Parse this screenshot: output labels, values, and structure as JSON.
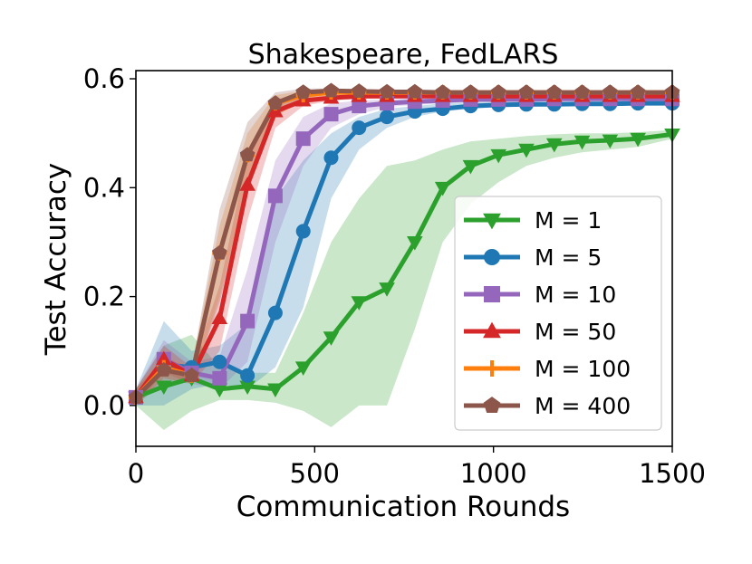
{
  "chart_data": {
    "type": "line",
    "title": "Shakespeare, FedLARS",
    "xlabel": "Communication Rounds",
    "ylabel": "Test Accuracy",
    "xlim": [
      0,
      1500
    ],
    "ylim": [
      -0.075,
      0.615
    ],
    "xticks": [
      0,
      500,
      1000,
      1500
    ],
    "xtick_labels": [
      "0",
      "500",
      "1000",
      "1500"
    ],
    "yticks": [
      0.0,
      0.2,
      0.4,
      0.6
    ],
    "ytick_labels": [
      "0.0",
      "0.2",
      "0.4",
      "0.6"
    ],
    "grid": false,
    "legend_position": "lower-right",
    "x": [
      0,
      78,
      156,
      234,
      312,
      390,
      468,
      546,
      624,
      702,
      780,
      858,
      936,
      1014,
      1092,
      1170,
      1248,
      1326,
      1404,
      1500
    ],
    "series": [
      {
        "name": "M = 1",
        "color": "#2ca02c",
        "marker": "triangle-down",
        "values": [
          0.015,
          0.035,
          0.05,
          0.03,
          0.035,
          0.03,
          0.07,
          0.125,
          0.19,
          0.215,
          0.3,
          0.4,
          0.44,
          0.46,
          0.47,
          0.48,
          0.485,
          0.487,
          0.49,
          0.498
        ],
        "lower": [
          0.0,
          -0.045,
          -0.01,
          0.01,
          0.01,
          0.005,
          -0.01,
          -0.04,
          0.0,
          0.0,
          0.14,
          0.3,
          0.37,
          0.41,
          0.44,
          0.455,
          0.465,
          0.47,
          0.475,
          0.49
        ],
        "upper": [
          0.03,
          0.11,
          0.13,
          0.07,
          0.06,
          0.06,
          0.17,
          0.3,
          0.38,
          0.44,
          0.45,
          0.47,
          0.485,
          0.49,
          0.495,
          0.498,
          0.5,
          0.5,
          0.502,
          0.506
        ]
      },
      {
        "name": "M = 5",
        "color": "#1f77b4",
        "marker": "circle",
        "values": [
          0.015,
          0.075,
          0.07,
          0.08,
          0.055,
          0.17,
          0.32,
          0.455,
          0.51,
          0.53,
          0.54,
          0.545,
          0.55,
          0.552,
          0.553,
          0.553,
          0.554,
          0.554,
          0.555,
          0.555
        ],
        "lower": [
          0.0,
          0.0,
          0.03,
          0.04,
          0.03,
          0.07,
          0.18,
          0.38,
          0.47,
          0.51,
          0.53,
          0.54,
          0.545,
          0.548,
          0.55,
          0.55,
          0.551,
          0.551,
          0.552,
          0.552
        ],
        "upper": [
          0.03,
          0.155,
          0.1,
          0.11,
          0.15,
          0.38,
          0.45,
          0.5,
          0.53,
          0.545,
          0.55,
          0.555,
          0.557,
          0.558,
          0.558,
          0.558,
          0.558,
          0.558,
          0.558,
          0.558
        ]
      },
      {
        "name": "M = 10",
        "color": "#9467bd",
        "marker": "square",
        "values": [
          0.015,
          0.085,
          0.06,
          0.05,
          0.155,
          0.385,
          0.49,
          0.535,
          0.55,
          0.555,
          0.558,
          0.56,
          0.562,
          0.562,
          0.562,
          0.563,
          0.563,
          0.563,
          0.563,
          0.563
        ],
        "lower": [
          0.0,
          0.05,
          0.04,
          0.03,
          0.08,
          0.3,
          0.44,
          0.51,
          0.535,
          0.548,
          0.552,
          0.555,
          0.557,
          0.558,
          0.558,
          0.559,
          0.559,
          0.559,
          0.559,
          0.559
        ],
        "upper": [
          0.03,
          0.12,
          0.08,
          0.09,
          0.25,
          0.45,
          0.53,
          0.555,
          0.56,
          0.562,
          0.564,
          0.565,
          0.566,
          0.566,
          0.566,
          0.567,
          0.567,
          0.567,
          0.567,
          0.567
        ]
      },
      {
        "name": "M = 50",
        "color": "#d62728",
        "marker": "triangle-up",
        "values": [
          0.015,
          0.085,
          0.055,
          0.16,
          0.405,
          0.54,
          0.56,
          0.565,
          0.568,
          0.568,
          0.568,
          0.568,
          0.568,
          0.568,
          0.568,
          0.568,
          0.568,
          0.568,
          0.568,
          0.568
        ],
        "lower": [
          0.0,
          0.06,
          0.04,
          0.1,
          0.34,
          0.51,
          0.55,
          0.56,
          0.563,
          0.564,
          0.564,
          0.564,
          0.564,
          0.564,
          0.564,
          0.564,
          0.564,
          0.564,
          0.564,
          0.564
        ],
        "upper": [
          0.03,
          0.11,
          0.07,
          0.22,
          0.46,
          0.56,
          0.57,
          0.572,
          0.572,
          0.572,
          0.572,
          0.572,
          0.572,
          0.572,
          0.572,
          0.572,
          0.572,
          0.572,
          0.572,
          0.572
        ]
      },
      {
        "name": "M = 100",
        "color": "#ff7f0e",
        "marker": "plus",
        "values": [
          0.015,
          0.07,
          0.055,
          0.28,
          0.46,
          0.555,
          0.57,
          0.575,
          0.575,
          0.575,
          0.575,
          0.575,
          0.575,
          0.575,
          0.575,
          0.575,
          0.575,
          0.575,
          0.575,
          0.575
        ],
        "lower": [
          0.0,
          0.05,
          0.04,
          0.2,
          0.4,
          0.53,
          0.56,
          0.57,
          0.571,
          0.571,
          0.571,
          0.571,
          0.571,
          0.571,
          0.571,
          0.571,
          0.571,
          0.571,
          0.571,
          0.571
        ],
        "upper": [
          0.03,
          0.09,
          0.07,
          0.33,
          0.5,
          0.57,
          0.578,
          0.579,
          0.579,
          0.579,
          0.579,
          0.579,
          0.579,
          0.579,
          0.579,
          0.579,
          0.579,
          0.579,
          0.579,
          0.579
        ]
      },
      {
        "name": "M = 400",
        "color": "#8c564b",
        "marker": "pentagon",
        "values": [
          0.015,
          0.065,
          0.055,
          0.28,
          0.46,
          0.555,
          0.575,
          0.578,
          0.577,
          0.576,
          0.576,
          0.575,
          0.575,
          0.575,
          0.575,
          0.575,
          0.575,
          0.575,
          0.575,
          0.575
        ],
        "lower": [
          0.0,
          0.045,
          0.04,
          0.19,
          0.39,
          0.53,
          0.565,
          0.572,
          0.572,
          0.571,
          0.571,
          0.571,
          0.571,
          0.571,
          0.571,
          0.571,
          0.571,
          0.571,
          0.571,
          0.571
        ],
        "upper": [
          0.03,
          0.085,
          0.07,
          0.36,
          0.52,
          0.575,
          0.582,
          0.582,
          0.581,
          0.58,
          0.58,
          0.579,
          0.579,
          0.579,
          0.579,
          0.579,
          0.579,
          0.579,
          0.579,
          0.579
        ]
      }
    ]
  }
}
